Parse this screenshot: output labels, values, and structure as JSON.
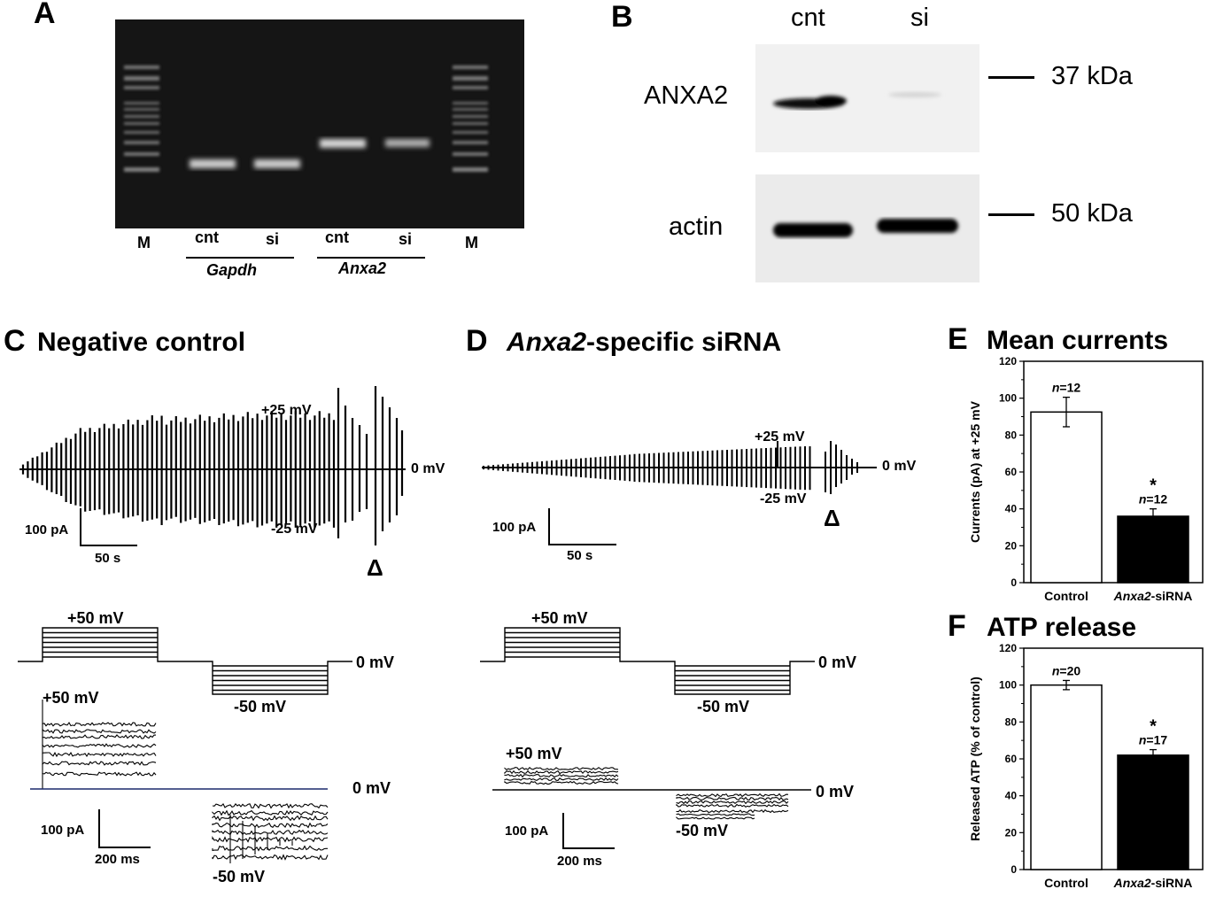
{
  "panelA": {
    "label": "A",
    "lanes": [
      "M",
      "cnt",
      "si",
      "cnt",
      "si",
      "M"
    ],
    "genes": [
      "Gapdh",
      "Anxa2"
    ]
  },
  "panelB": {
    "label": "B",
    "columns": [
      "cnt",
      "si"
    ],
    "rows": [
      "ANXA2",
      "actin"
    ],
    "markers": [
      "37 kDa",
      "50 kDa"
    ]
  },
  "panelC": {
    "label": "C",
    "title": "Negative control",
    "v_plus25": "+25 mV",
    "v_minus25": "-25 mV",
    "v_zero": "0 mV",
    "scale_current": "100 pA",
    "scale_time": "50 s",
    "delta": "Δ",
    "step_plus50": "+50 mV",
    "step_zero": "0 mV",
    "step_minus50": "-50 mV",
    "trace_plus50": "+50 mV",
    "trace_zero": "0 mV",
    "trace_minus50": "-50 mV",
    "scale_current2": "100 pA",
    "scale_time2": "200 ms"
  },
  "panelD": {
    "label": "D",
    "title_italic": "Anxa2",
    "title_rest": "-specific siRNA",
    "v_plus25": "+25 mV",
    "v_minus25": "-25 mV",
    "v_zero": "0 mV",
    "scale_current": "100 pA",
    "scale_time": "50 s",
    "delta": "Δ",
    "step_plus50": "+50 mV",
    "step_zero": "0 mV",
    "step_minus50": "-50 mV",
    "trace_plus50": "+50 mV",
    "trace_zero": "0 mV",
    "trace_minus50": "-50 mV",
    "scale_current2": "100 pA",
    "scale_time2": "200 ms"
  },
  "chart_data": [
    {
      "type": "bar",
      "panel": "E",
      "title": "Mean currents",
      "ylabel": "Currents (pA) at +25 mV",
      "categories": [
        "Control",
        "Anxa2-siRNA"
      ],
      "values": [
        92.5,
        36
      ],
      "errors": [
        8,
        4
      ],
      "n_labels": [
        "12",
        "12"
      ],
      "significance": [
        "",
        "*"
      ],
      "ylim": [
        0,
        120
      ],
      "yticks": [
        0,
        20,
        40,
        60,
        80,
        100,
        120
      ],
      "bar_colors": [
        "#ffffff",
        "#000000"
      ]
    },
    {
      "type": "bar",
      "panel": "F",
      "title": "ATP release",
      "ylabel": "Released ATP (% of control)",
      "categories": [
        "Control",
        "Anxa2-siRNA"
      ],
      "values": [
        100,
        62
      ],
      "errors": [
        2.5,
        3
      ],
      "n_labels": [
        "20",
        "17"
      ],
      "significance": [
        "",
        "*"
      ],
      "ylim": [
        0,
        120
      ],
      "yticks": [
        0,
        20,
        40,
        60,
        80,
        100,
        120
      ],
      "bar_colors": [
        "#ffffff",
        "#000000"
      ]
    }
  ],
  "n_prefix": "n",
  "n_eq": "=",
  "cat_italic": "Anxa2",
  "cat_rest": "-siRNA"
}
